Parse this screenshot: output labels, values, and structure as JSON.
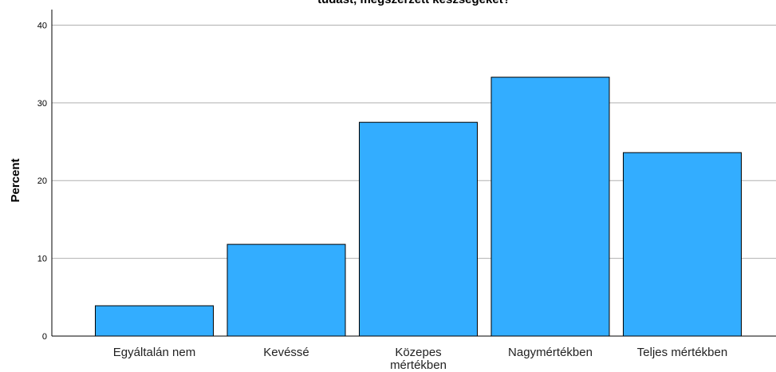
{
  "chart_data": {
    "type": "bar",
    "title": "tudást, megszerzett készségeket?",
    "xlabel": "",
    "ylabel": "Percent",
    "categories": [
      "Egyáltalán nem",
      "Kevéssé",
      "Közepes mértékben",
      "Nagymértékben",
      "Teljes mértékben"
    ],
    "category_label_lines": [
      [
        "Egyáltalán nem"
      ],
      [
        "Kevéssé"
      ],
      [
        "Közepes",
        "mértékben"
      ],
      [
        "Nagymértékben"
      ],
      [
        "Teljes mértékben"
      ]
    ],
    "values": [
      3.9,
      11.8,
      27.5,
      33.3,
      23.6
    ],
    "ylim": [
      0,
      42
    ],
    "yticks": [
      0,
      10,
      20,
      30,
      40
    ],
    "grid": true,
    "bar_color": "#33adff",
    "bar_edge_color": "#000000",
    "grid_color": "#b0b0b0"
  }
}
